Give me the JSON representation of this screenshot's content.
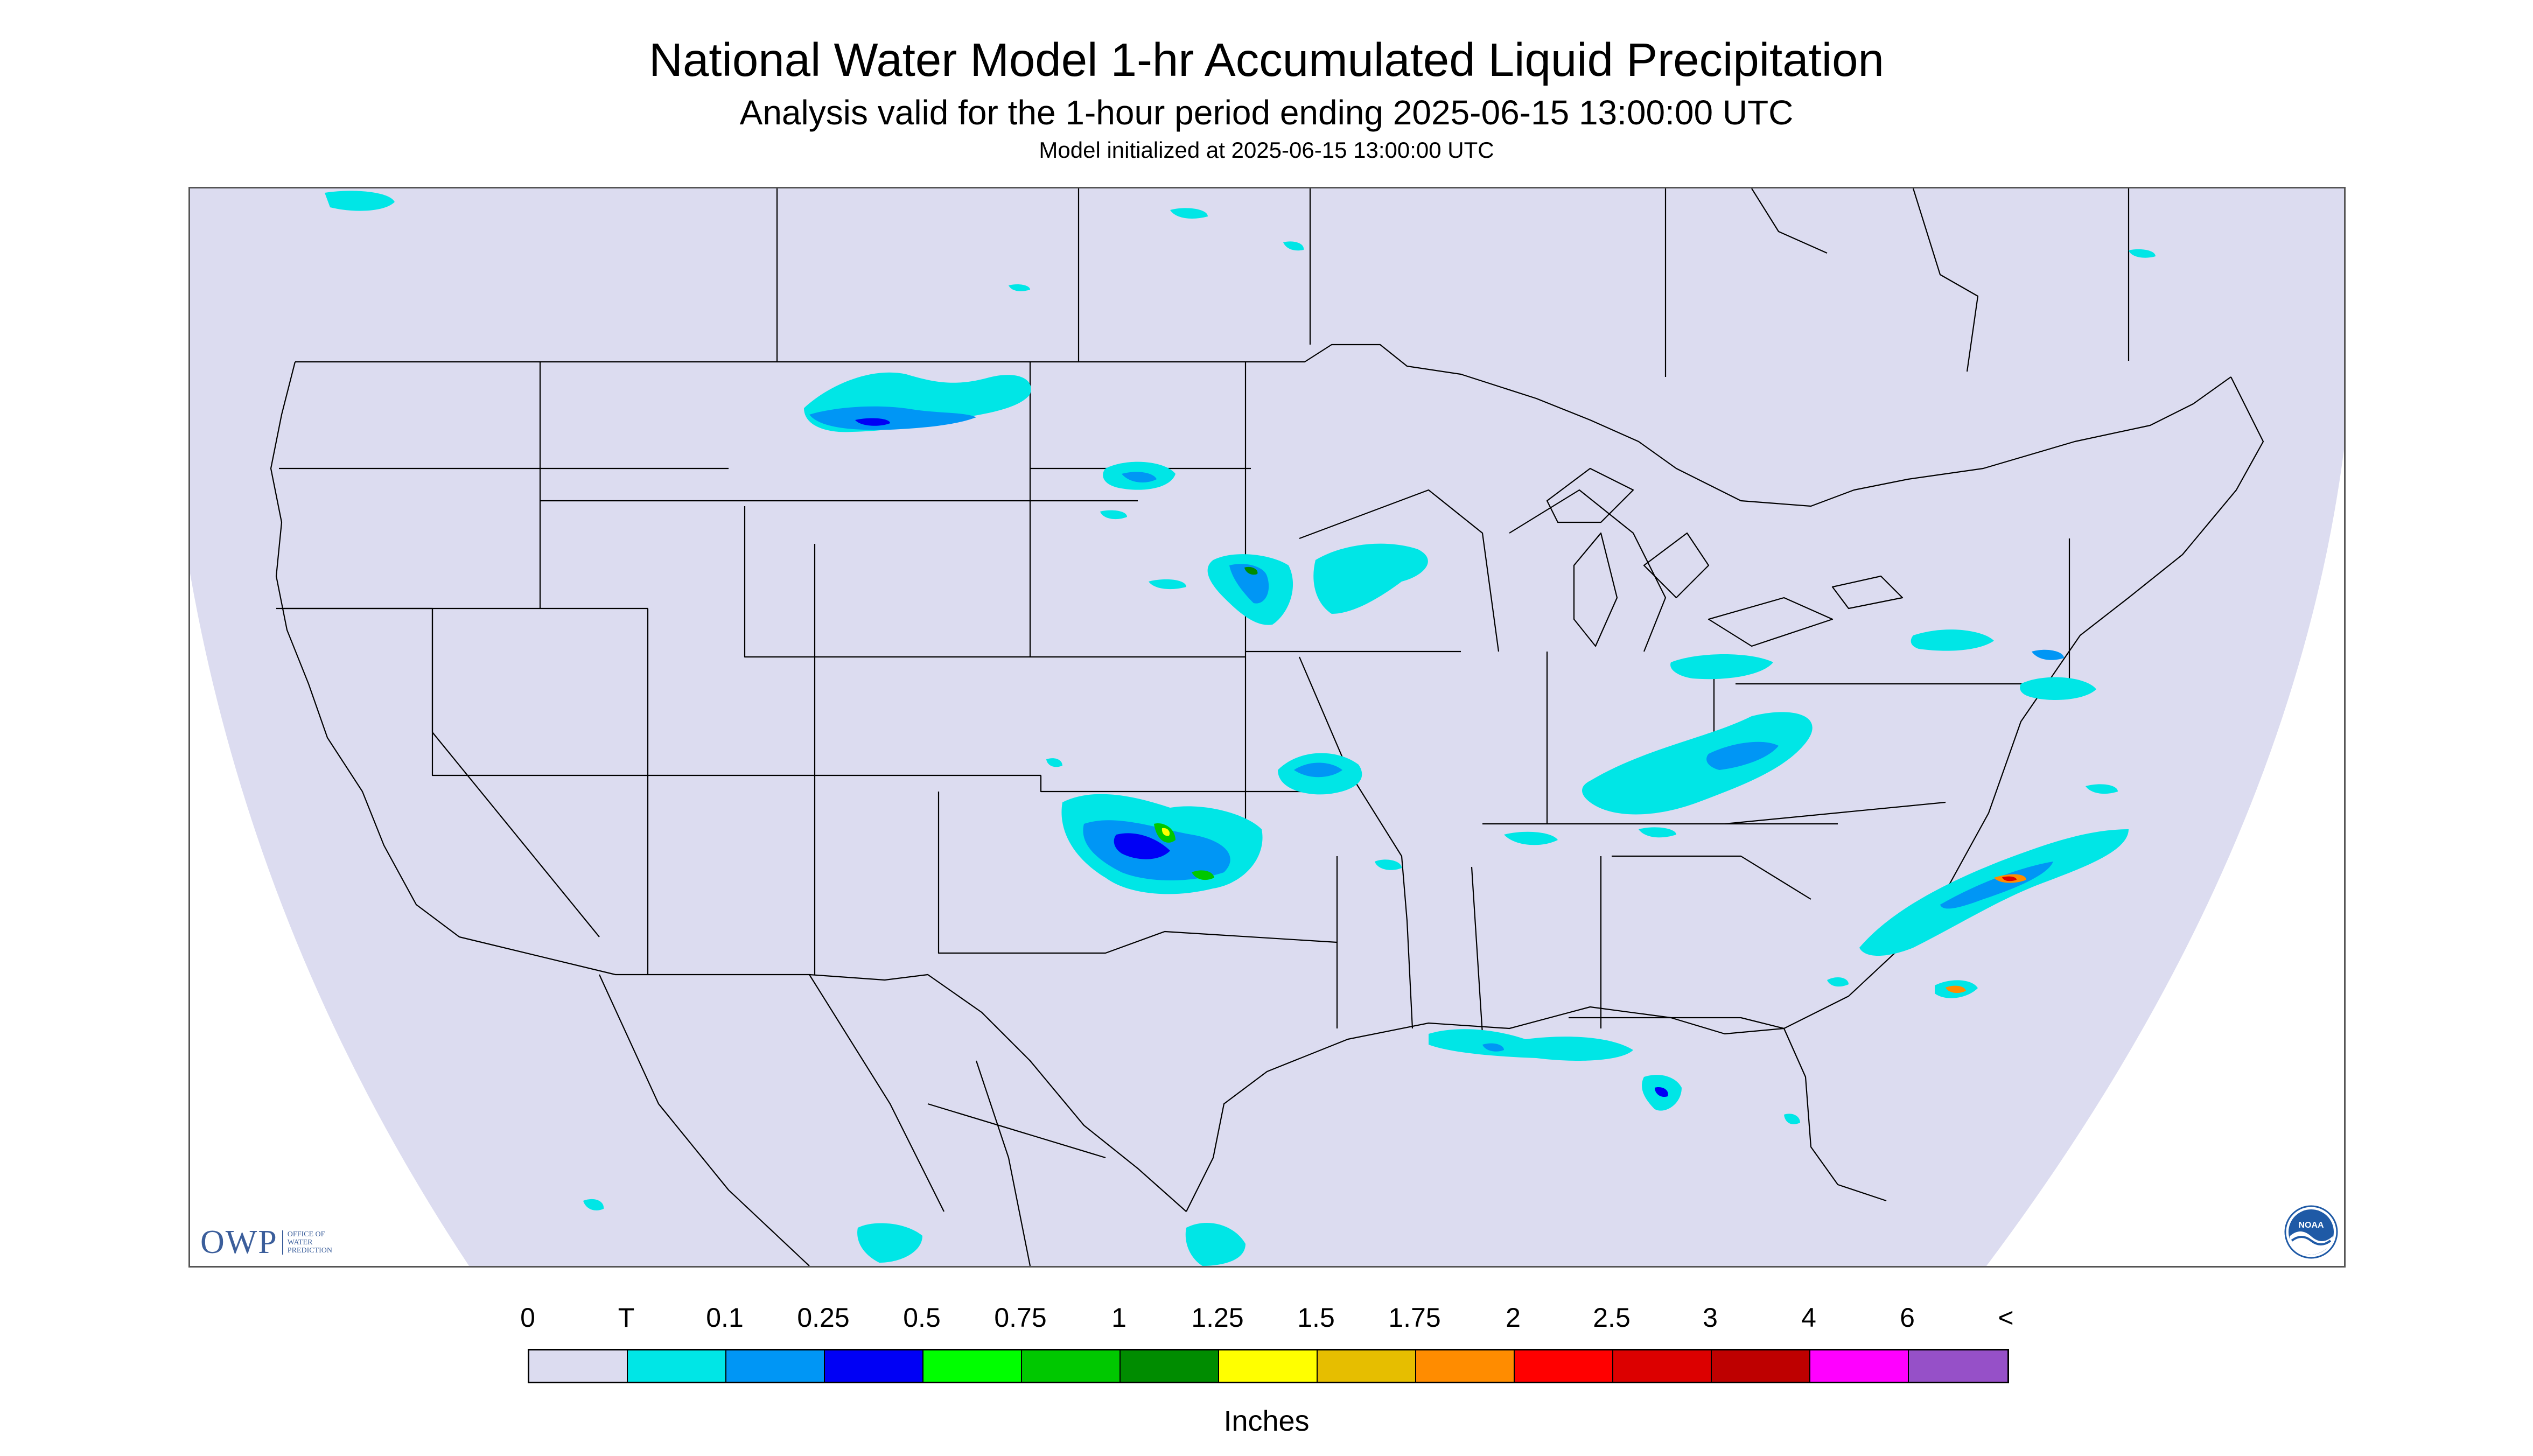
{
  "title": "National Water Model 1-hr Accumulated Liquid Precipitation",
  "subtitle": "Analysis valid for the 1-hour period ending 2025-06-15 13:00:00 UTC",
  "init_line": "Model initialized at 2025-06-15 13:00:00 UTC",
  "legend": {
    "labels": [
      "0",
      "T",
      "0.1",
      "0.25",
      "0.5",
      "0.75",
      "1",
      "1.25",
      "1.5",
      "1.75",
      "2",
      "2.5",
      "3",
      "4",
      "6",
      "<"
    ],
    "colors": [
      "#dcdcf0",
      "#00e6e6",
      "#0096f5",
      "#0000f5",
      "#00ff00",
      "#00c800",
      "#008c00",
      "#ffff00",
      "#e6be00",
      "#ff8c00",
      "#ff0000",
      "#dc0000",
      "#be0000",
      "#ff00ff",
      "#9650c8"
    ],
    "units": "Inches"
  },
  "logos": {
    "owp_mark": "OWP",
    "owp_text": [
      "OFFICE OF",
      "WATER",
      "PREDICTION"
    ],
    "noaa_text": "NOAA"
  },
  "map": {
    "region": "Continental United States",
    "background_color": "#dcdcf0",
    "outside_color": "#ffffff",
    "boundary_color": "#000000"
  },
  "chart_data": {
    "type": "heatmap",
    "variable": "1-hr accumulated liquid precipitation",
    "units": "Inches",
    "bins": [
      "0",
      "T",
      "0.1",
      "0.25",
      "0.5",
      "0.75",
      "1",
      "1.25",
      "1.5",
      "1.75",
      "2",
      "2.5",
      "3",
      "4",
      "6"
    ],
    "precip_areas": [
      {
        "region": "north-central Montana",
        "max_bin": "0.5"
      },
      {
        "region": "western South Dakota",
        "max_bin": "0.25"
      },
      {
        "region": "southeastern South Dakota / northwestern Iowa",
        "max_bin": "1.5"
      },
      {
        "region": "southern Minnesota / Wisconsin",
        "max_bin": "0.1"
      },
      {
        "region": "Texas panhandle / western Oklahoma",
        "max_bin": "1.5"
      },
      {
        "region": "south-central Kansas / northern Oklahoma",
        "max_bin": "0.25"
      },
      {
        "region": "Ohio valley / Kentucky / West Virginia",
        "max_bin": "0.25"
      },
      {
        "region": "Pennsylvania / New Jersey",
        "max_bin": "0.1"
      },
      {
        "region": "offshore North Carolina",
        "max_bin": "2.5"
      },
      {
        "region": "offshore Georgia",
        "max_bin": "2"
      },
      {
        "region": "northern Gulf coast",
        "max_bin": "0.25"
      },
      {
        "region": "Florida peninsula",
        "max_bin": "0.25"
      }
    ]
  }
}
